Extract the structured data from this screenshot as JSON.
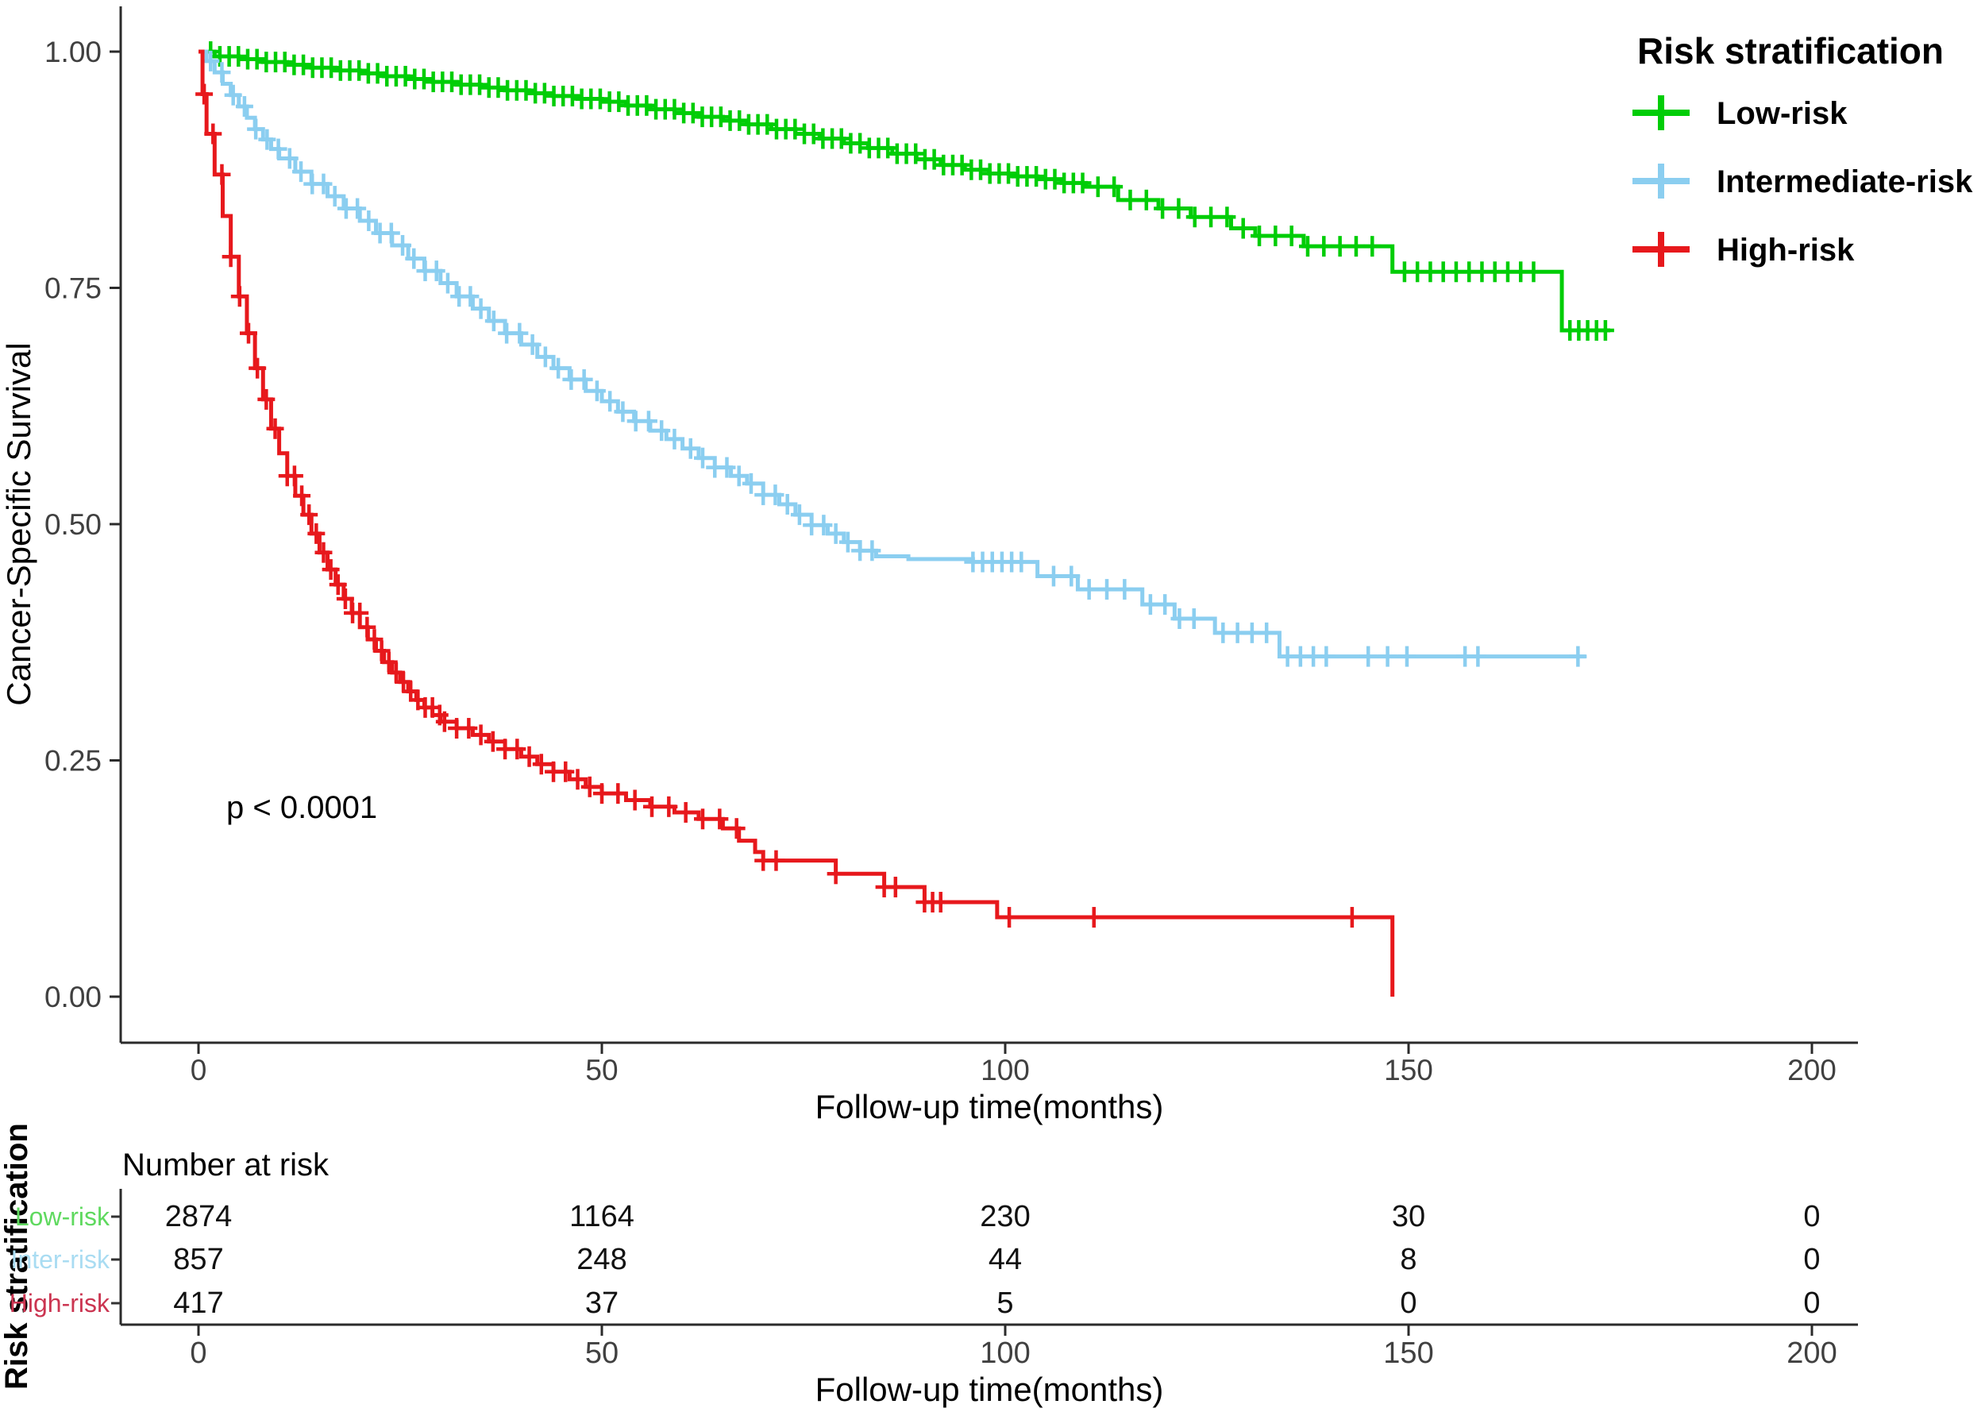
{
  "chart_data": {
    "type": "line",
    "subtype": "kaplan-meier-step",
    "title": "",
    "xlabel": "Follow-up time(months)",
    "ylabel": "Cancer-Specific Survival",
    "xlim": [
      0,
      200
    ],
    "xticks": [
      "0",
      "50",
      "100",
      "150",
      "200"
    ],
    "xtick_values": [
      0,
      50,
      100,
      150,
      200
    ],
    "ylim": [
      0,
      1
    ],
    "yticks": [
      "0.00",
      "0.25",
      "0.50",
      "0.75",
      "1.00"
    ],
    "ytick_values": [
      0,
      0.25,
      0.5,
      0.75,
      1.0
    ],
    "grid": false,
    "pvalue_annotation": "p < 0.0001",
    "legend": {
      "title": "Risk stratification",
      "position": "top-right",
      "items": [
        {
          "label": "Low-risk",
          "color": "#00CD07"
        },
        {
          "label": "Intermediate-risk",
          "color": "#8BCEF0"
        },
        {
          "label": "High-risk",
          "color": "#E7181C"
        }
      ]
    },
    "series": [
      {
        "name": "Low-risk",
        "color": "#00CD07",
        "end_time": 175,
        "points": [
          [
            0,
            1.0
          ],
          [
            2,
            0.995
          ],
          [
            5,
            0.992
          ],
          [
            8,
            0.989
          ],
          [
            11,
            0.986
          ],
          [
            14,
            0.983
          ],
          [
            17,
            0.98
          ],
          [
            20,
            0.977
          ],
          [
            23,
            0.974
          ],
          [
            26,
            0.971
          ],
          [
            29,
            0.968
          ],
          [
            32,
            0.965
          ],
          [
            35,
            0.962
          ],
          [
            38,
            0.959
          ],
          [
            41,
            0.956
          ],
          [
            44,
            0.953
          ],
          [
            47,
            0.95
          ],
          [
            50,
            0.947
          ],
          [
            53,
            0.943
          ],
          [
            56,
            0.939
          ],
          [
            59,
            0.935
          ],
          [
            62,
            0.931
          ],
          [
            65,
            0.927
          ],
          [
            68,
            0.923
          ],
          [
            71,
            0.918
          ],
          [
            74,
            0.913
          ],
          [
            77,
            0.908
          ],
          [
            80,
            0.903
          ],
          [
            83,
            0.898
          ],
          [
            86,
            0.892
          ],
          [
            89,
            0.886
          ],
          [
            92,
            0.88
          ],
          [
            95,
            0.875
          ],
          [
            98,
            0.871
          ],
          [
            101,
            0.868
          ],
          [
            104,
            0.865
          ],
          [
            107,
            0.861
          ],
          [
            110,
            0.857
          ],
          [
            114,
            0.843
          ],
          [
            119,
            0.834
          ],
          [
            123,
            0.825
          ],
          [
            128,
            0.813
          ],
          [
            131,
            0.805
          ],
          [
            137,
            0.794
          ],
          [
            148,
            0.767
          ],
          [
            169,
            0.705
          ]
        ],
        "censor_ranges": [
          [
            1.5,
            110,
            1.15
          ],
          [
            111.5,
            147,
            2.0
          ],
          [
            149.5,
            167,
            1.6
          ],
          [
            170,
            174.5,
            1.1
          ]
        ]
      },
      {
        "name": "Intermediate-risk",
        "color": "#8BCEF0",
        "end_time": 172,
        "points": [
          [
            0,
            1.0
          ],
          [
            1,
            0.99
          ],
          [
            2,
            0.978
          ],
          [
            3,
            0.966
          ],
          [
            4,
            0.954
          ],
          [
            5,
            0.942
          ],
          [
            6,
            0.93
          ],
          [
            7,
            0.918
          ],
          [
            8,
            0.907
          ],
          [
            9,
            0.897
          ],
          [
            10,
            0.887
          ],
          [
            12,
            0.873
          ],
          [
            14,
            0.86
          ],
          [
            16,
            0.847
          ],
          [
            18,
            0.834
          ],
          [
            20,
            0.821
          ],
          [
            22,
            0.808
          ],
          [
            24,
            0.795
          ],
          [
            26,
            0.781
          ],
          [
            28,
            0.768
          ],
          [
            30,
            0.755
          ],
          [
            32,
            0.741
          ],
          [
            34,
            0.728
          ],
          [
            36,
            0.715
          ],
          [
            38,
            0.702
          ],
          [
            40,
            0.69
          ],
          [
            42,
            0.677
          ],
          [
            44,
            0.665
          ],
          [
            46,
            0.653
          ],
          [
            48,
            0.641
          ],
          [
            50,
            0.63
          ],
          [
            52,
            0.619
          ],
          [
            54,
            0.609
          ],
          [
            56,
            0.599
          ],
          [
            58,
            0.59
          ],
          [
            60,
            0.58
          ],
          [
            62,
            0.57
          ],
          [
            64,
            0.56
          ],
          [
            66,
            0.551
          ],
          [
            68,
            0.543
          ],
          [
            70,
            0.531
          ],
          [
            72,
            0.521
          ],
          [
            74,
            0.51
          ],
          [
            76,
            0.499
          ],
          [
            78,
            0.49
          ],
          [
            80,
            0.481
          ],
          [
            82,
            0.472
          ],
          [
            84,
            0.466
          ],
          [
            88,
            0.463
          ],
          [
            96,
            0.46
          ],
          [
            104,
            0.445
          ],
          [
            109,
            0.431
          ],
          [
            117,
            0.415
          ],
          [
            121,
            0.4
          ],
          [
            126,
            0.385
          ],
          [
            134,
            0.36
          ]
        ],
        "censor_ranges": [
          [
            1.5,
            34,
            1.4
          ],
          [
            35,
            60,
            1.6
          ],
          [
            61,
            84,
            1.5
          ],
          [
            96,
            103,
            1.2
          ],
          [
            106,
            116,
            2.2
          ],
          [
            118,
            125,
            1.8
          ],
          [
            127,
            133,
            1.8
          ],
          [
            135,
            141,
            1.6
          ],
          [
            145,
            152,
            2.4
          ],
          [
            157,
            160,
            1.6
          ],
          [
            171,
            171,
            1
          ]
        ]
      },
      {
        "name": "High-risk",
        "color": "#E7181C",
        "end_time": 148,
        "points": [
          [
            0,
            1.0
          ],
          [
            0.5,
            0.955
          ],
          [
            1,
            0.913
          ],
          [
            2,
            0.87
          ],
          [
            3,
            0.826
          ],
          [
            4,
            0.783
          ],
          [
            5,
            0.741
          ],
          [
            6,
            0.702
          ],
          [
            7,
            0.665
          ],
          [
            8,
            0.632
          ],
          [
            9,
            0.601
          ],
          [
            10,
            0.575
          ],
          [
            11,
            0.551
          ],
          [
            12,
            0.53
          ],
          [
            13,
            0.51
          ],
          [
            14,
            0.49
          ],
          [
            15,
            0.47
          ],
          [
            16,
            0.452
          ],
          [
            17,
            0.436
          ],
          [
            18,
            0.421
          ],
          [
            19,
            0.406
          ],
          [
            20,
            0.391
          ],
          [
            21,
            0.378
          ],
          [
            22,
            0.366
          ],
          [
            23,
            0.354
          ],
          [
            24,
            0.343
          ],
          [
            25,
            0.333
          ],
          [
            26,
            0.323
          ],
          [
            27,
            0.314
          ],
          [
            28,
            0.306
          ],
          [
            29,
            0.298
          ],
          [
            30,
            0.291
          ],
          [
            32,
            0.284
          ],
          [
            34,
            0.277
          ],
          [
            36,
            0.27
          ],
          [
            38,
            0.262
          ],
          [
            40,
            0.254
          ],
          [
            42,
            0.246
          ],
          [
            44,
            0.238
          ],
          [
            46,
            0.23
          ],
          [
            48,
            0.222
          ],
          [
            50,
            0.215
          ],
          [
            53,
            0.208
          ],
          [
            56,
            0.201
          ],
          [
            59,
            0.195
          ],
          [
            62,
            0.188
          ],
          [
            65,
            0.178
          ],
          [
            67,
            0.165
          ],
          [
            69,
            0.153
          ],
          [
            70,
            0.144
          ],
          [
            79,
            0.13
          ],
          [
            85,
            0.116
          ],
          [
            90,
            0.1
          ],
          [
            99,
            0.084
          ],
          [
            148,
            0.0
          ]
        ],
        "censor_ranges": [
          [
            0.7,
            10,
            1.1
          ],
          [
            11,
            30,
            0.9
          ],
          [
            30.5,
            50,
            1.5
          ],
          [
            52,
            68,
            2.1
          ],
          [
            70,
            72,
            1.6
          ],
          [
            79,
            79,
            1
          ],
          [
            85,
            86.5,
            1.4
          ],
          [
            90,
            92,
            1
          ],
          [
            100.5,
            100.5,
            1
          ],
          [
            111,
            111,
            1
          ],
          [
            143,
            143,
            1
          ]
        ]
      }
    ]
  },
  "risk_table": {
    "heading": "Number at risk",
    "axis_title": "Risk stratification",
    "xlabel": "Follow-up time(months)",
    "column_ticks": [
      "0",
      "50",
      "100",
      "150",
      "200"
    ],
    "column_values": [
      0,
      50,
      100,
      150,
      200
    ],
    "rows": [
      {
        "label": "Low-risk",
        "color": "#5FD95F",
        "values": [
          "2874",
          "1164",
          "230",
          "30",
          "0"
        ]
      },
      {
        "label": "Inter-risk",
        "color": "#A9DCF2",
        "values": [
          "857",
          "248",
          "44",
          "8",
          "0"
        ]
      },
      {
        "label": "High-risk",
        "color": "#CB3551",
        "values": [
          "417",
          "37",
          "5",
          "0",
          "0"
        ]
      }
    ]
  },
  "style_colors": {
    "axis_line": "#2b2b2b",
    "tick_label": "#404040",
    "title_text": "#000000"
  }
}
